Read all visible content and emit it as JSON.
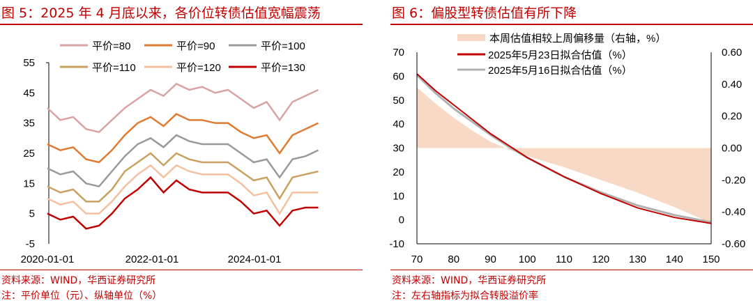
{
  "left": {
    "title": "图 5：2025 年 4 月底以来，各价位转债估值宽幅震荡",
    "source": "资料来源：WIND，华西证券研究所",
    "note": "注：平价单位（元）、纵轴单位（%）"
  },
  "right": {
    "title": "图 6：偏股型转债估值有所下降",
    "source": "资料来源：WIND，华西证券研究所",
    "note": "注：左右轴指标为拟合转股溢价率"
  },
  "chart_data": [
    {
      "type": "line",
      "title": "图 5：2025 年 4 月底以来，各价位转债估值宽幅震荡",
      "xlabel": "",
      "ylabel": "%",
      "ylim": [
        -5,
        55
      ],
      "yticks": [
        "-5",
        "5",
        "15",
        "25",
        "35",
        "45",
        "55"
      ],
      "xticks": [
        "2020-01-01",
        "2022-01-01",
        "2024-01-01"
      ],
      "legend": "top",
      "x": [
        "2020Q1",
        "2020Q2",
        "2020Q3",
        "2020Q4",
        "2021Q1",
        "2021Q2",
        "2021Q3",
        "2021Q4",
        "2022Q1",
        "2022Q2",
        "2022Q3",
        "2022Q4",
        "2023Q1",
        "2023Q2",
        "2023Q3",
        "2023Q4",
        "2024Q1",
        "2024Q2",
        "2024Q3",
        "2024Q4",
        "2025Q1",
        "2025Q2"
      ],
      "series": [
        {
          "name": "平价=80",
          "color": "#d9a3a3",
          "values": [
            40,
            36,
            37,
            33,
            32,
            36,
            40,
            43,
            46,
            44,
            48,
            46,
            47,
            45,
            46,
            43,
            40,
            42,
            36,
            42,
            44,
            46
          ]
        },
        {
          "name": "平价=90",
          "color": "#e07a30",
          "values": [
            28,
            26,
            27,
            23,
            22,
            26,
            31,
            35,
            37,
            34,
            38,
            36,
            36,
            35,
            35,
            32,
            30,
            31,
            25,
            31,
            33,
            35
          ]
        },
        {
          "name": "平价=100",
          "color": "#999999",
          "values": [
            20,
            18,
            19,
            15,
            14,
            19,
            24,
            28,
            30,
            27,
            31,
            29,
            28,
            28,
            28,
            25,
            22,
            23,
            17,
            23,
            24,
            26
          ]
        },
        {
          "name": "平价=110",
          "color": "#c9a060",
          "values": [
            14,
            12,
            13,
            9,
            9,
            13,
            19,
            22,
            25,
            21,
            25,
            23,
            22,
            22,
            22,
            19,
            16,
            17,
            10,
            17,
            18,
            19
          ]
        },
        {
          "name": "平价=120",
          "color": "#f5c0a0",
          "values": [
            10,
            8,
            9,
            5,
            5,
            9,
            14,
            18,
            21,
            17,
            21,
            19,
            18,
            18,
            18,
            15,
            11,
            12,
            5,
            12,
            12,
            12
          ]
        },
        {
          "name": "平价=130",
          "color": "#c00000",
          "values": [
            5,
            3,
            4,
            0,
            1,
            5,
            10,
            13,
            17,
            12,
            16,
            13,
            12,
            12,
            12,
            9,
            5,
            6,
            1,
            6,
            7,
            7
          ]
        }
      ]
    },
    {
      "type": "line",
      "title": "图 6：偏股型转债估值有所下降",
      "xlabel": "",
      "ylim": [
        -10,
        70
      ],
      "y2lim": [
        -0.6,
        0.6
      ],
      "xticks": [
        "70",
        "80",
        "90",
        "100",
        "110",
        "120",
        "130",
        "140",
        "150"
      ],
      "yticks": [
        "-10",
        "0",
        "10",
        "20",
        "30",
        "40",
        "50",
        "60",
        "70"
      ],
      "y2ticks": [
        "-0.60",
        "-0.40",
        "-0.20",
        "0.00",
        "0.20",
        "0.40",
        "0.60"
      ],
      "x": [
        70,
        75,
        80,
        85,
        90,
        95,
        100,
        110,
        120,
        130,
        140,
        150
      ],
      "series": [
        {
          "name": "本周估值相较上周偏移量（右轴，%）",
          "type": "area",
          "axis": "right",
          "color": "#f8d9c6",
          "values": [
            0.38,
            0.28,
            0.19,
            0.11,
            0.04,
            -0.01,
            -0.05,
            -0.12,
            -0.2,
            -0.28,
            -0.37,
            -0.47
          ]
        },
        {
          "name": "2025年5月23日拟合估值（%）",
          "axis": "left",
          "color": "#c00000",
          "values": [
            61,
            54,
            48,
            42,
            36,
            31,
            26,
            18,
            11,
            5,
            1,
            -1.5
          ]
        },
        {
          "name": "2025年5月16日拟合估值（%）",
          "axis": "left",
          "color": "#b0b0b0",
          "values": [
            60.5,
            53,
            46.5,
            41,
            35.5,
            30.5,
            26,
            18,
            11.5,
            6,
            2,
            -1
          ]
        }
      ],
      "legend": "top"
    }
  ]
}
